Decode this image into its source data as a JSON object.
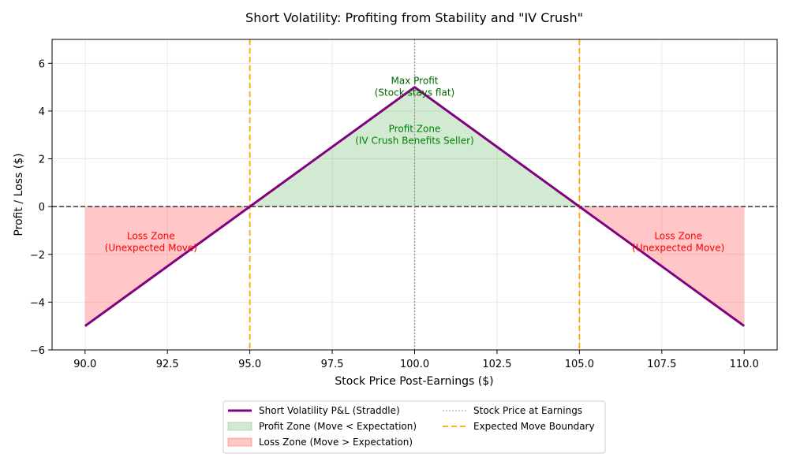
{
  "chart_data": {
    "type": "line",
    "title": "Short Volatility: Profiting from Stability and \"IV Crush\"",
    "xlabel": "Stock Price Post-Earnings ($)",
    "ylabel": "Profit / Loss ($)",
    "xlim": [
      89,
      111
    ],
    "ylim": [
      -6,
      7
    ],
    "xticks": [
      90.0,
      92.5,
      95.0,
      97.5,
      100.0,
      102.5,
      105.0,
      107.5,
      110.0
    ],
    "xtick_labels": [
      "90.0",
      "92.5",
      "95.0",
      "97.5",
      "100.0",
      "102.5",
      "105.0",
      "107.5",
      "110.0"
    ],
    "yticks": [
      -6,
      -4,
      -2,
      0,
      2,
      4,
      6
    ],
    "ytick_labels": [
      "−6",
      "−4",
      "−2",
      "0",
      "2",
      "4",
      "6"
    ],
    "grid": true,
    "series": [
      {
        "name": "Short Volatility P&L (Straddle)",
        "x": [
          90,
          95,
          100,
          105,
          110
        ],
        "y": [
          -5,
          0,
          5,
          0,
          -5
        ],
        "color": "#800080"
      }
    ],
    "fills": [
      {
        "name": "Profit Zone (Move < Expectation)",
        "x_from": 95,
        "x_to": 105,
        "color": "#2ca02c"
      },
      {
        "name": "Loss Zone (Move > Expectation)",
        "ranges": [
          [
            90,
            95
          ],
          [
            105,
            110
          ]
        ],
        "color": "#ff0000"
      }
    ],
    "reference_lines": [
      {
        "name": "Stock Price at Earnings",
        "orientation": "vertical",
        "x": 100,
        "style": "dotted",
        "color": "#999999"
      },
      {
        "name": "Expected Move Boundary",
        "orientation": "vertical",
        "x": [
          95,
          105
        ],
        "style": "dashed",
        "color": "#ffa500"
      },
      {
        "orientation": "horizontal",
        "y": 0,
        "style": "dashed",
        "color": "#333333"
      }
    ],
    "annotations": [
      {
        "lines": [
          "Max Profit",
          "(Stock stays flat)"
        ],
        "x": 100,
        "y": 4.9,
        "color": "#006400"
      },
      {
        "lines": [
          "Profit Zone",
          "(IV Crush Benefits Seller)"
        ],
        "x": 100,
        "y": 2.9,
        "color": "#008000"
      },
      {
        "lines": [
          "Loss Zone",
          "(Unexpected Move)"
        ],
        "x": 92,
        "y": -1.6,
        "color": "#ff0000"
      },
      {
        "lines": [
          "Loss Zone",
          "(Unexpected Move)"
        ],
        "x": 108,
        "y": -1.6,
        "color": "#ff0000"
      }
    ],
    "legend": {
      "placement": "bottom-center",
      "items": [
        {
          "label": "Short Volatility P&L (Straddle)",
          "kind": "line",
          "color": "#800080"
        },
        {
          "label": "Profit Zone (Move < Expectation)",
          "kind": "patch",
          "color": "#2ca02c"
        },
        {
          "label": "Loss Zone (Move > Expectation)",
          "kind": "patch",
          "color": "#ff0000"
        },
        {
          "label": "Stock Price at Earnings",
          "kind": "dotted",
          "color": "#aaaaaa"
        },
        {
          "label": "Expected Move Boundary",
          "kind": "dashed",
          "color": "#ffa500"
        }
      ]
    }
  }
}
